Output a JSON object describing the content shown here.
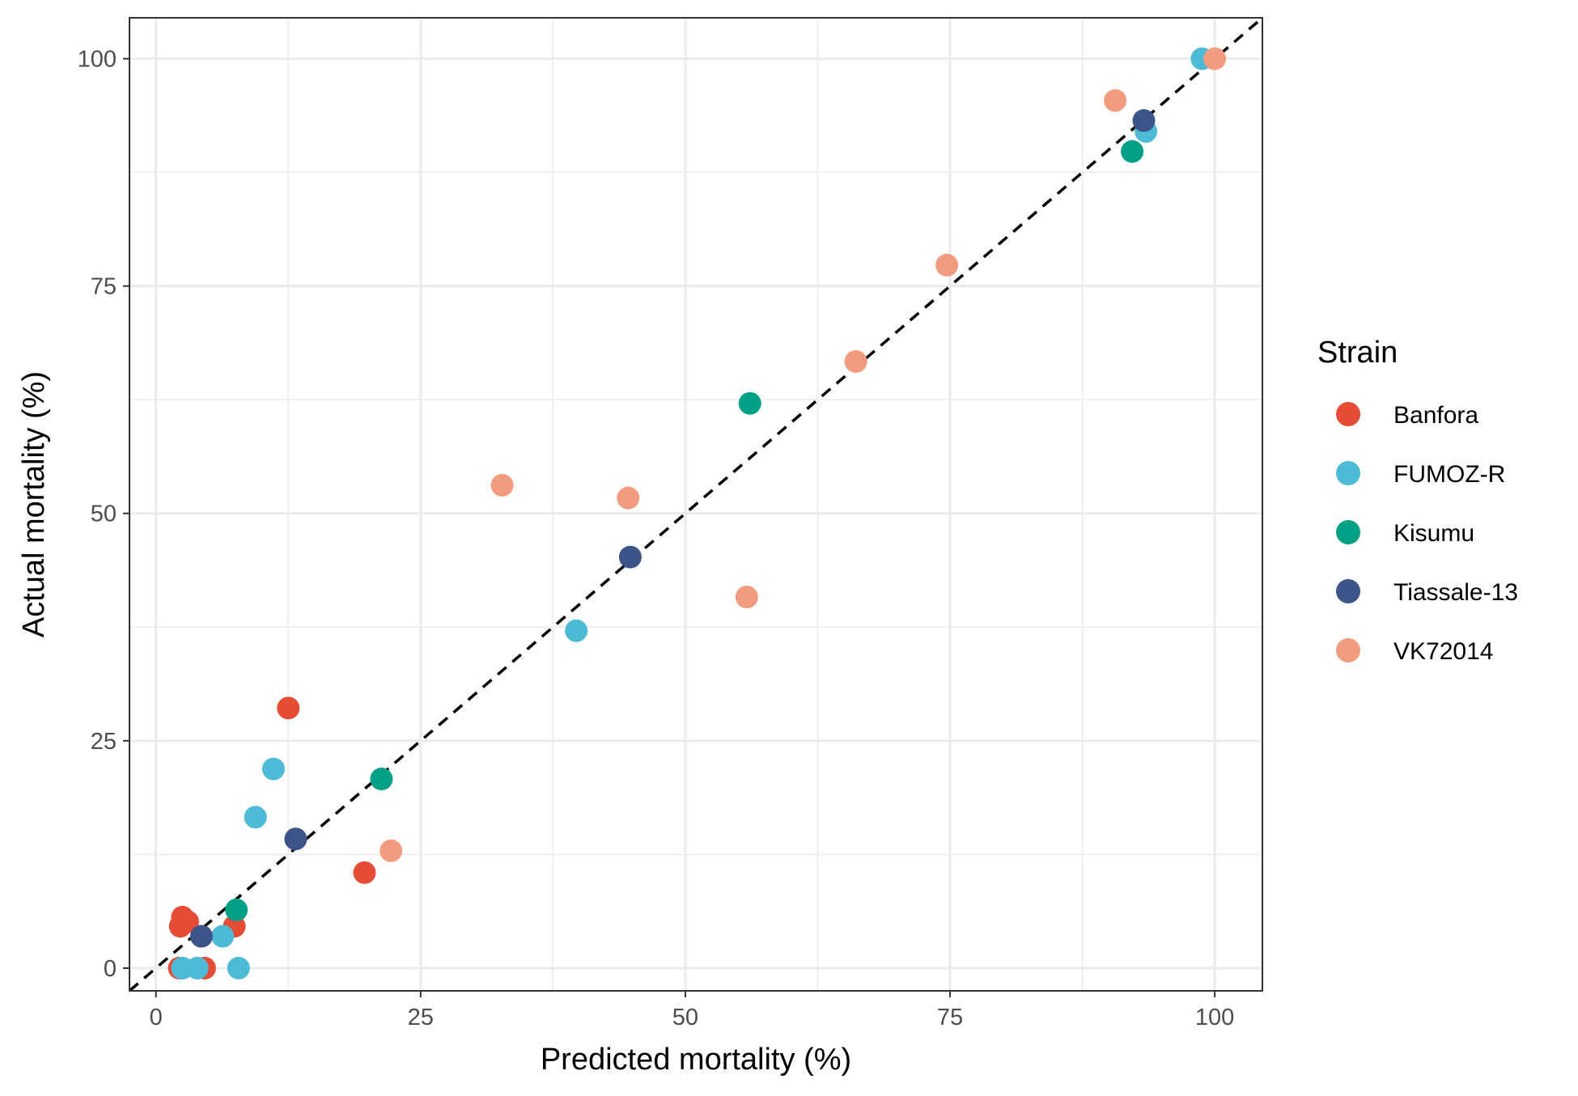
{
  "chart_data": {
    "type": "scatter",
    "xlabel": "Predicted mortality (%)",
    "ylabel": "Actual mortality (%)",
    "xlim": [
      -2.5,
      104.5
    ],
    "ylim": [
      -2.5,
      104.5
    ],
    "x_ticks": [
      "0",
      "25",
      "50",
      "75",
      "100"
    ],
    "y_ticks": [
      "0",
      "25",
      "50",
      "75",
      "100"
    ],
    "grid": true,
    "reference_line": "identity (y = x), dashed, black",
    "legend": {
      "title": "Strain",
      "placement": "right"
    },
    "series": [
      {
        "name": "Banfora",
        "color": "#E64B35",
        "points": [
          {
            "x": 12.5,
            "y": 28.6
          },
          {
            "x": 19.7,
            "y": 10.5
          },
          {
            "x": 7.4,
            "y": 4.6
          },
          {
            "x": 2.5,
            "y": 5.6
          },
          {
            "x": 2.3,
            "y": 4.6
          },
          {
            "x": 3.0,
            "y": 5.1
          },
          {
            "x": 2.2,
            "y": 0.0
          },
          {
            "x": 4.6,
            "y": 0.0
          }
        ]
      },
      {
        "name": "FUMOZ-R",
        "color": "#4DBBD5",
        "points": [
          {
            "x": 98.8,
            "y": 100.0
          },
          {
            "x": 93.5,
            "y": 92.0
          },
          {
            "x": 39.7,
            "y": 37.1
          },
          {
            "x": 11.1,
            "y": 21.9
          },
          {
            "x": 9.4,
            "y": 16.6
          },
          {
            "x": 6.3,
            "y": 3.5
          },
          {
            "x": 2.5,
            "y": 0.0
          },
          {
            "x": 3.9,
            "y": 0.0
          },
          {
            "x": 7.8,
            "y": 0.0
          }
        ]
      },
      {
        "name": "Kisumu",
        "color": "#00A087",
        "points": [
          {
            "x": 92.2,
            "y": 89.8
          },
          {
            "x": 56.1,
            "y": 62.1
          },
          {
            "x": 21.3,
            "y": 20.8
          },
          {
            "x": 7.6,
            "y": 6.4
          }
        ]
      },
      {
        "name": "Tiassale-13",
        "color": "#3C5488",
        "points": [
          {
            "x": 93.3,
            "y": 93.2
          },
          {
            "x": 44.8,
            "y": 45.2
          },
          {
            "x": 13.2,
            "y": 14.2
          },
          {
            "x": 4.3,
            "y": 3.5
          }
        ]
      },
      {
        "name": "VK72014",
        "color": "#F39B7F",
        "points": [
          {
            "x": 100.0,
            "y": 100.0
          },
          {
            "x": 90.6,
            "y": 95.4
          },
          {
            "x": 74.7,
            "y": 77.3
          },
          {
            "x": 66.1,
            "y": 66.7
          },
          {
            "x": 32.7,
            "y": 53.1
          },
          {
            "x": 44.6,
            "y": 51.7
          },
          {
            "x": 55.8,
            "y": 40.8
          },
          {
            "x": 22.2,
            "y": 12.9
          }
        ]
      }
    ]
  }
}
